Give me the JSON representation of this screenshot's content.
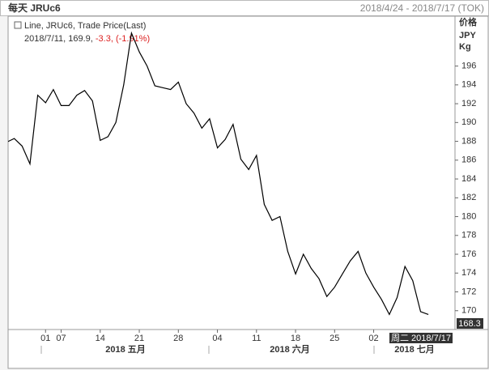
{
  "header": {
    "title": "每天 JRUc6",
    "range": "2018/4/24 - 2018/7/17 (TOK)"
  },
  "legend": {
    "series": "Line, JRUc6, Trade Price(Last)",
    "point": "2018/7/11, 169.9, ",
    "change": "-3.3, (-1.91%)"
  },
  "axis_unit": [
    "价格",
    "JPY",
    "Kg"
  ],
  "last_value": "168.3",
  "cursor_label": "周二 2018/7/17",
  "months": [
    "2018 五月",
    "2018 六月",
    "2018 七月"
  ],
  "chart_data": {
    "type": "line",
    "categories": [
      null,
      null,
      null,
      null,
      null,
      "01",
      null,
      "07",
      null,
      null,
      null,
      null,
      "14",
      null,
      null,
      null,
      null,
      "21",
      null,
      null,
      null,
      null,
      "28",
      null,
      null,
      null,
      null,
      "04",
      null,
      null,
      null,
      null,
      "11",
      null,
      null,
      null,
      null,
      "18",
      null,
      null,
      null,
      null,
      "25",
      null,
      null,
      null,
      null,
      "02",
      null,
      null,
      null,
      null,
      null,
      null,
      null
    ],
    "series": [
      {
        "name": "JRUc6",
        "color": "#000000",
        "values": [
          187.9,
          188.3,
          187.5,
          185.6,
          192.9,
          192.1,
          193.5,
          191.8,
          191.8,
          192.9,
          193.4,
          192.3,
          188.1,
          188.5,
          190.0,
          194.0,
          199.5,
          197.5,
          196.0,
          193.9,
          193.7,
          193.5,
          194.3,
          192.0,
          191.0,
          189.4,
          190.4,
          187.3,
          188.2,
          189.8,
          186.1,
          185.0,
          186.5,
          181.3,
          179.6,
          180.0,
          176.3,
          173.9,
          176.0,
          174.5,
          173.4,
          171.5,
          172.5,
          173.9,
          175.3,
          176.3,
          174.0,
          172.5,
          171.2,
          169.6,
          171.4,
          174.7,
          173.2,
          169.9,
          169.6
        ]
      }
    ],
    "ylim": [
      168,
      201.3
    ],
    "yticks": [
      170,
      172,
      174,
      176,
      178,
      180,
      182,
      184,
      186,
      188,
      190,
      192,
      194,
      196
    ]
  }
}
